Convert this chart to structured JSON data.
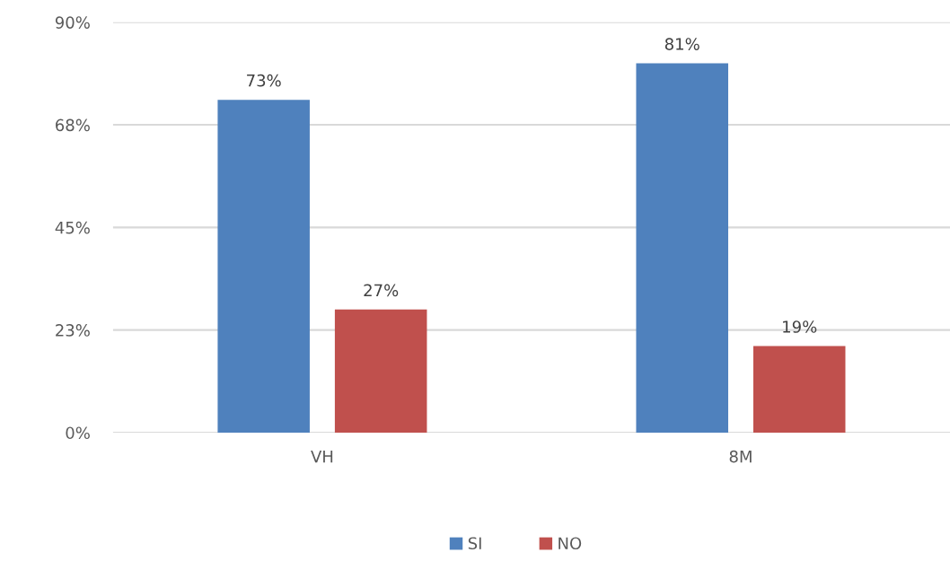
{
  "chart_data": {
    "type": "bar",
    "categories": [
      "VH",
      "8M"
    ],
    "series": [
      {
        "name": "SI",
        "color": "#4f81bd",
        "values": [
          73,
          81
        ],
        "value_labels": [
          "73%",
          "81%"
        ]
      },
      {
        "name": "NO",
        "color": "#c0504d",
        "values": [
          27,
          19
        ],
        "value_labels": [
          "27%",
          "19%"
        ]
      }
    ],
    "ylim": [
      0,
      90
    ],
    "yticks": [
      {
        "value": 0,
        "label": "0%"
      },
      {
        "value": 22.5,
        "label": "23%"
      },
      {
        "value": 45,
        "label": "45%"
      },
      {
        "value": 67.5,
        "label": "68%"
      },
      {
        "value": 90,
        "label": "90%"
      }
    ],
    "grid": "y",
    "legend": "bottom"
  }
}
